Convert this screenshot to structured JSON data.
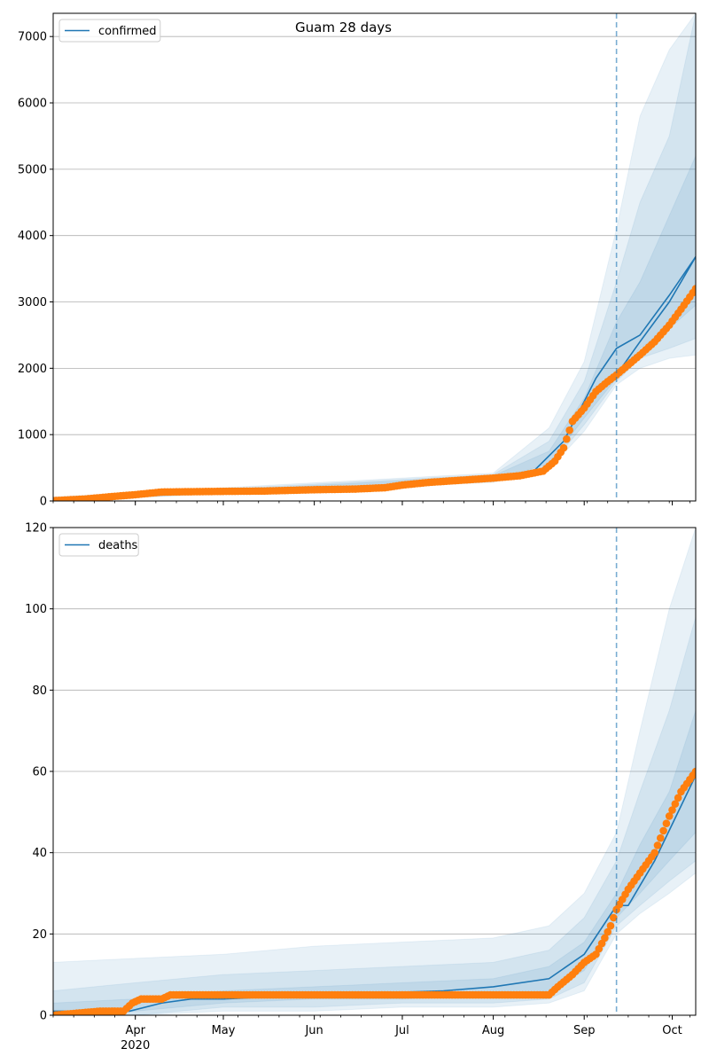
{
  "chart_data": [
    {
      "type": "line",
      "title": "Guam 28 days",
      "legend": {
        "placement": "top-left",
        "entries": [
          "confirmed"
        ]
      },
      "grid": "y",
      "ylim": [
        0,
        7350
      ],
      "y_ticks": [
        0,
        1000,
        2000,
        3000,
        4000,
        5000,
        6000,
        7000
      ],
      "y_tick_labels": [
        "0",
        "1000",
        "2000",
        "3000",
        "4000",
        "5000",
        "6000",
        "7000"
      ],
      "x_ticks": [
        {
          "label": "Apr",
          "sublabel": "2020",
          "date": "2020-04-01"
        },
        {
          "label": "May",
          "sublabel": "",
          "date": "2020-05-01"
        },
        {
          "label": "Jun",
          "sublabel": "",
          "date": "2020-06-01"
        },
        {
          "label": "Jul",
          "sublabel": "",
          "date": "2020-07-01"
        },
        {
          "label": "Aug",
          "sublabel": "",
          "date": "2020-08-01"
        },
        {
          "label": "Sep",
          "sublabel": "",
          "date": "2020-09-01"
        },
        {
          "label": "Oct",
          "sublabel": "",
          "date": "2020-10-01"
        }
      ],
      "xlim": [
        "2020-03-04",
        "2020-10-09"
      ],
      "forecast_start": "2020-09-12",
      "fit_line": {
        "color": "#1f77b4",
        "x": [
          "2020-03-04",
          "2020-04-01",
          "2020-05-01",
          "2020-06-01",
          "2020-07-01",
          "2020-08-01",
          "2020-08-15",
          "2020-08-25",
          "2020-09-01",
          "2020-09-05",
          "2020-09-12",
          "2020-09-20",
          "2020-09-30",
          "2020-10-09"
        ],
        "y": [
          5,
          110,
          160,
          190,
          250,
          350,
          460,
          900,
          1500,
          1850,
          2300,
          2500,
          3100,
          3680
        ]
      },
      "forecast_line": {
        "color": "#1f77b4",
        "x": [
          "2020-09-12",
          "2020-09-20",
          "2020-09-30",
          "2020-10-09"
        ],
        "y": [
          1900,
          2400,
          3000,
          3680
        ]
      },
      "bands": [
        {
          "x": [
            "2020-03-04",
            "2020-08-01",
            "2020-08-20",
            "2020-09-01",
            "2020-09-12",
            "2020-09-20",
            "2020-09-30",
            "2020-10-09"
          ],
          "low": [
            0,
            280,
            480,
            1050,
            1750,
            2000,
            2150,
            2200
          ],
          "high": [
            60,
            420,
            1100,
            2100,
            4100,
            5800,
            6800,
            7350
          ]
        },
        {
          "x": [
            "2020-03-04",
            "2020-08-01",
            "2020-08-20",
            "2020-09-01",
            "2020-09-12",
            "2020-09-20",
            "2020-09-30",
            "2020-10-09"
          ],
          "low": [
            0,
            300,
            520,
            1150,
            1800,
            2150,
            2300,
            2450
          ],
          "high": [
            40,
            400,
            900,
            1800,
            3300,
            4500,
            5500,
            7350
          ]
        },
        {
          "x": [
            "2020-03-04",
            "2020-08-01",
            "2020-08-20",
            "2020-09-01",
            "2020-09-12",
            "2020-09-20",
            "2020-09-30",
            "2020-10-09"
          ],
          "low": [
            0,
            320,
            560,
            1250,
            1850,
            2300,
            2600,
            2950
          ],
          "high": [
            20,
            380,
            750,
            1550,
            2700,
            3300,
            4300,
            5200
          ]
        }
      ],
      "observed": {
        "color": "#ff7f0e",
        "x": [
          "2020-03-04",
          "2020-03-15",
          "2020-03-25",
          "2020-04-01",
          "2020-04-10",
          "2020-04-20",
          "2020-05-01",
          "2020-05-15",
          "2020-06-01",
          "2020-06-15",
          "2020-06-25",
          "2020-07-01",
          "2020-07-10",
          "2020-07-20",
          "2020-08-01",
          "2020-08-10",
          "2020-08-18",
          "2020-08-22",
          "2020-08-25",
          "2020-08-28",
          "2020-09-01",
          "2020-09-05",
          "2020-09-09",
          "2020-09-12",
          "2020-09-16",
          "2020-09-20",
          "2020-09-25",
          "2020-09-30",
          "2020-10-05",
          "2020-10-09"
        ],
        "y": [
          5,
          30,
          70,
          95,
          135,
          140,
          145,
          150,
          170,
          180,
          200,
          240,
          280,
          310,
          345,
          380,
          450,
          600,
          800,
          1200,
          1400,
          1650,
          1800,
          1900,
          2050,
          2200,
          2400,
          2650,
          2950,
          3200
        ]
      }
    },
    {
      "type": "line",
      "title": "",
      "legend": {
        "placement": "top-left",
        "entries": [
          "deaths"
        ]
      },
      "grid": "y",
      "ylim": [
        0,
        120
      ],
      "y_ticks": [
        0,
        20,
        40,
        60,
        80,
        100,
        120
      ],
      "y_tick_labels": [
        "0",
        "20",
        "40",
        "60",
        "80",
        "100",
        "120"
      ],
      "x_ticks": [
        {
          "label": "Apr",
          "sublabel": "2020",
          "date": "2020-04-01"
        },
        {
          "label": "May",
          "sublabel": "",
          "date": "2020-05-01"
        },
        {
          "label": "Jun",
          "sublabel": "",
          "date": "2020-06-01"
        },
        {
          "label": "Jul",
          "sublabel": "",
          "date": "2020-07-01"
        },
        {
          "label": "Aug",
          "sublabel": "",
          "date": "2020-08-01"
        },
        {
          "label": "Sep",
          "sublabel": "",
          "date": "2020-09-01"
        },
        {
          "label": "Oct",
          "sublabel": "",
          "date": "2020-10-01"
        }
      ],
      "xlim": [
        "2020-03-04",
        "2020-10-09"
      ],
      "forecast_start": "2020-09-12",
      "fit_line": {
        "color": "#1f77b4",
        "x": [
          "2020-03-04",
          "2020-03-30",
          "2020-04-10",
          "2020-04-20",
          "2020-05-01",
          "2020-06-01",
          "2020-07-15",
          "2020-08-01",
          "2020-08-20",
          "2020-09-01",
          "2020-09-12",
          "2020-09-16",
          "2020-09-25",
          "2020-10-09"
        ],
        "y": [
          1,
          1,
          3,
          4,
          4,
          5,
          6,
          7,
          9,
          15,
          27,
          27,
          38,
          59
        ]
      },
      "bands": [
        {
          "x": [
            "2020-03-04",
            "2020-04-01",
            "2020-05-01",
            "2020-06-01",
            "2020-07-01",
            "2020-08-01",
            "2020-08-20",
            "2020-09-01",
            "2020-09-12",
            "2020-09-20",
            "2020-09-30",
            "2020-10-09"
          ],
          "low": [
            0,
            0,
            1,
            1,
            2,
            2,
            3,
            6,
            20,
            25,
            30,
            35
          ],
          "high": [
            13,
            14,
            15,
            17,
            18,
            19,
            22,
            30,
            45,
            70,
            100,
            120
          ]
        },
        {
          "x": [
            "2020-03-04",
            "2020-04-01",
            "2020-05-01",
            "2020-06-01",
            "2020-07-01",
            "2020-08-01",
            "2020-08-20",
            "2020-09-01",
            "2020-09-12",
            "2020-09-20",
            "2020-09-30",
            "2020-10-09"
          ],
          "low": [
            0,
            0,
            2,
            2,
            3,
            3,
            4,
            8,
            22,
            27,
            33,
            38
          ],
          "high": [
            6,
            8,
            10,
            11,
            12,
            13,
            16,
            24,
            38,
            55,
            75,
            98
          ]
        },
        {
          "x": [
            "2020-03-04",
            "2020-04-01",
            "2020-05-01",
            "2020-06-01",
            "2020-07-01",
            "2020-08-01",
            "2020-08-20",
            "2020-09-01",
            "2020-09-12",
            "2020-09-20",
            "2020-09-30",
            "2020-10-09"
          ],
          "low": [
            0,
            1,
            3,
            4,
            4,
            5,
            6,
            11,
            24,
            30,
            38,
            45
          ],
          "high": [
            3,
            4,
            6,
            7,
            8,
            9,
            12,
            18,
            30,
            42,
            55,
            75
          ]
        }
      ],
      "observed": {
        "color": "#ff7f0e",
        "x": [
          "2020-03-04",
          "2020-03-20",
          "2020-03-28",
          "2020-03-31",
          "2020-04-03",
          "2020-04-10",
          "2020-04-13",
          "2020-05-01",
          "2020-06-01",
          "2020-07-01",
          "2020-08-01",
          "2020-08-20",
          "2020-08-23",
          "2020-08-28",
          "2020-09-01",
          "2020-09-05",
          "2020-09-08",
          "2020-09-10",
          "2020-09-12",
          "2020-09-16",
          "2020-09-20",
          "2020-09-25",
          "2020-09-30",
          "2020-10-04",
          "2020-10-09"
        ],
        "y": [
          0,
          1,
          1,
          3,
          4,
          4,
          5,
          5,
          5,
          5,
          5,
          5,
          7,
          10,
          13,
          15,
          19,
          22,
          26,
          31,
          35,
          40,
          49,
          55,
          60
        ]
      }
    }
  ]
}
